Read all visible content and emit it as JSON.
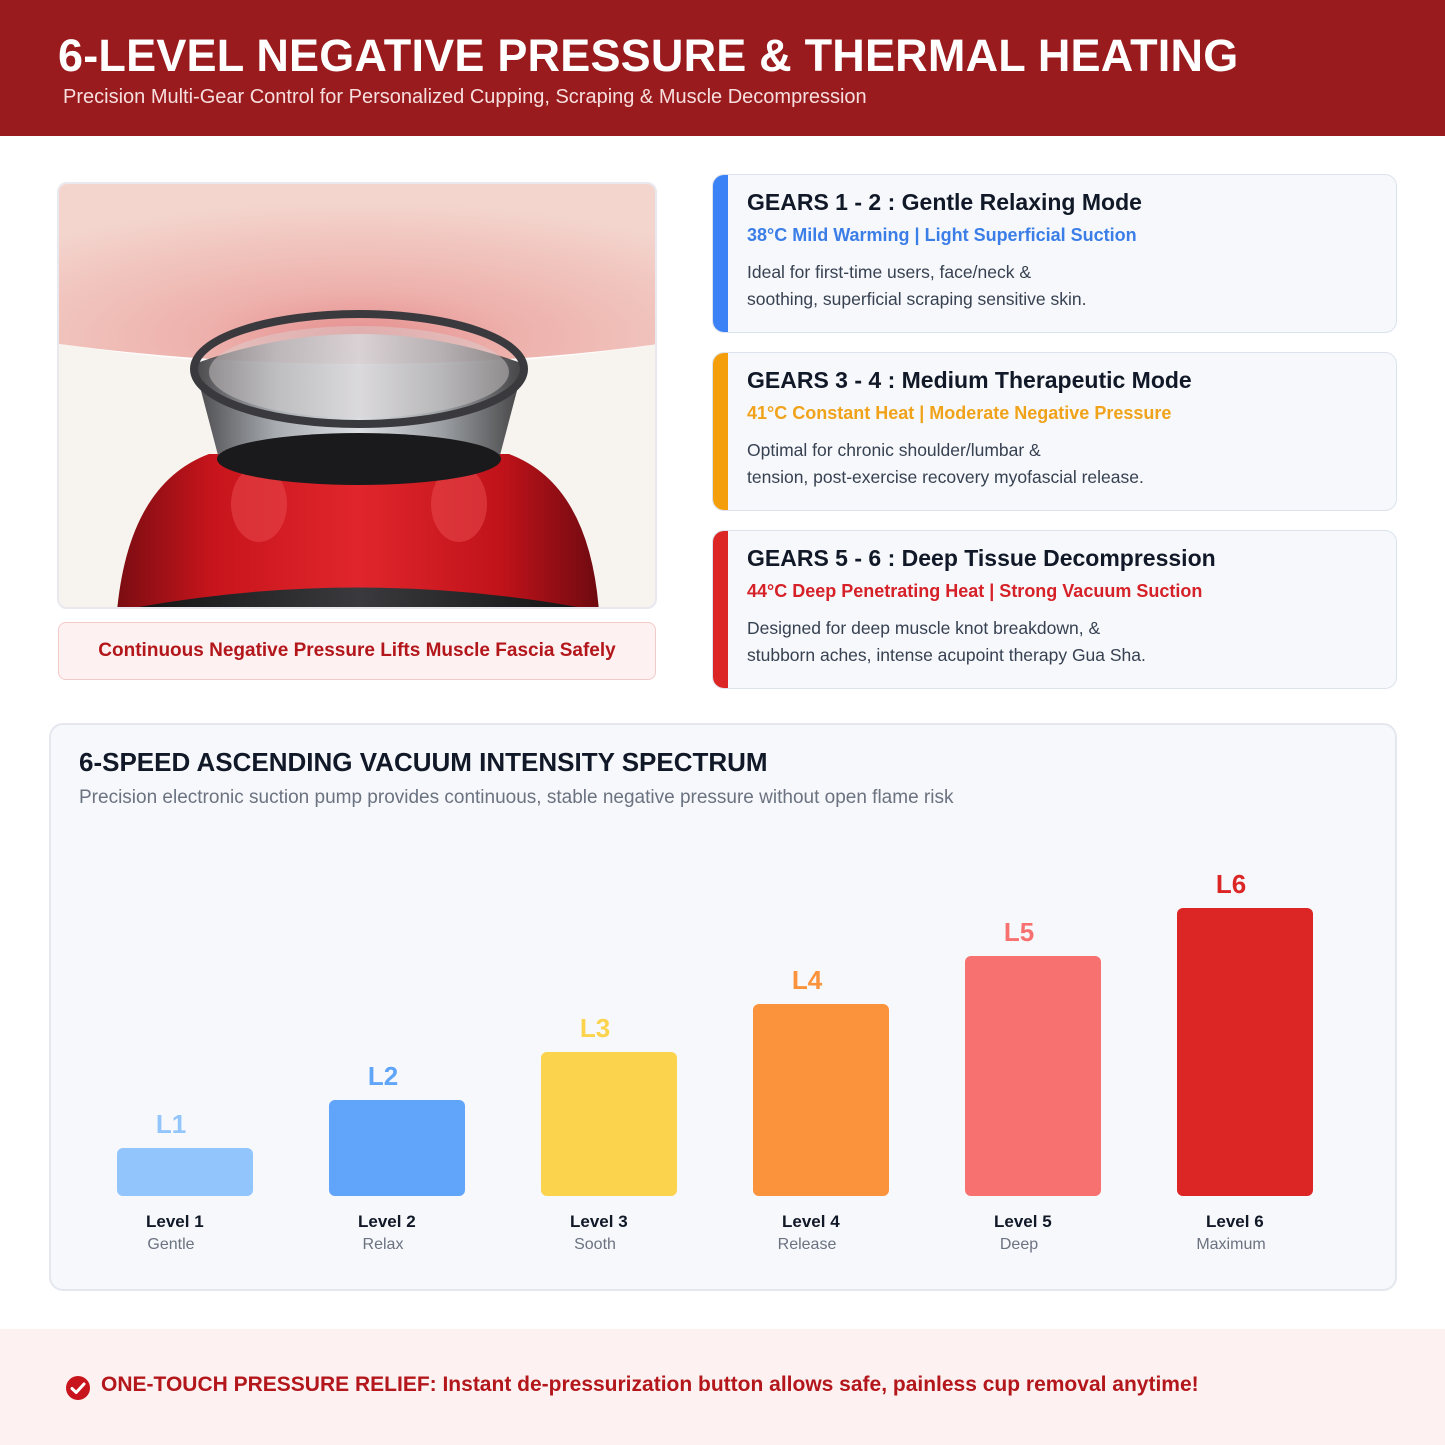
{
  "header": {
    "title": "6-LEVEL NEGATIVE PRESSURE & THERMAL HEATING",
    "subtitle": "Precision Multi-Gear Control for Personalized Cupping, Scraping & Muscle Decompression"
  },
  "product": {
    "image_icon": "cupping-device-image",
    "caption": "Continuous Negative Pressure Lifts Muscle Fascia Safely"
  },
  "gears": [
    {
      "title": "GEARS 1 - 2 : Gentle Relaxing Mode",
      "spec": "38°C Mild Warming | Light Superficial Suction",
      "desc_line1": "Ideal for first-time users, face/neck &",
      "desc_line2": "soothing, superficial scraping sensitive skin.",
      "color": "#3b82f6"
    },
    {
      "title": "GEARS 3 - 4 : Medium Therapeutic Mode",
      "spec": "41°C Constant Heat | Moderate Negative Pressure",
      "desc_line1": "Optimal for chronic shoulder/lumbar &",
      "desc_line2": "tension, post-exercise recovery myofascial release.",
      "color": "#f59e0b"
    },
    {
      "title": "GEARS 5 - 6 : Deep Tissue Decompression",
      "spec": "44°C Deep Penetrating Heat | Strong Vacuum Suction",
      "desc_line1": "Designed for deep muscle knot breakdown, &",
      "desc_line2": "stubborn aches, intense acupoint therapy Gua Sha.",
      "color": "#dc2626"
    }
  ],
  "chart": {
    "title": "6-SPEED ASCENDING VACUUM INTENSITY SPECTRUM",
    "subtitle": "Precision electronic suction pump provides continuous, stable negative pressure without open flame risk"
  },
  "chart_data": {
    "type": "bar",
    "categories": [
      "Level 1",
      "Level 2",
      "Level 3",
      "Level 4",
      "Level 5",
      "Level 6"
    ],
    "bar_labels": [
      "L1",
      "L2",
      "L3",
      "L4",
      "L5",
      "L6"
    ],
    "descriptors": [
      "Gentle",
      "Relax",
      "Sooth",
      "Release",
      "Deep",
      "Maximum"
    ],
    "values": [
      1,
      2,
      3,
      4,
      5,
      6
    ],
    "colors": [
      "#93c5fd",
      "#60a5fa",
      "#fcd34d",
      "#fb923c",
      "#f87171",
      "#dc2626"
    ],
    "label_colors": [
      "#93c5fd",
      "#60a5fa",
      "#fcd34d",
      "#fb923c",
      "#f87171",
      "#dc2626"
    ],
    "ylim": [
      0,
      6
    ],
    "grid": false
  },
  "footer": {
    "icon": "check-circle-icon",
    "note": "ONE-TOUCH PRESSURE RELIEF: Instant de-pressurization button allows safe, painless cup removal anytime!"
  }
}
